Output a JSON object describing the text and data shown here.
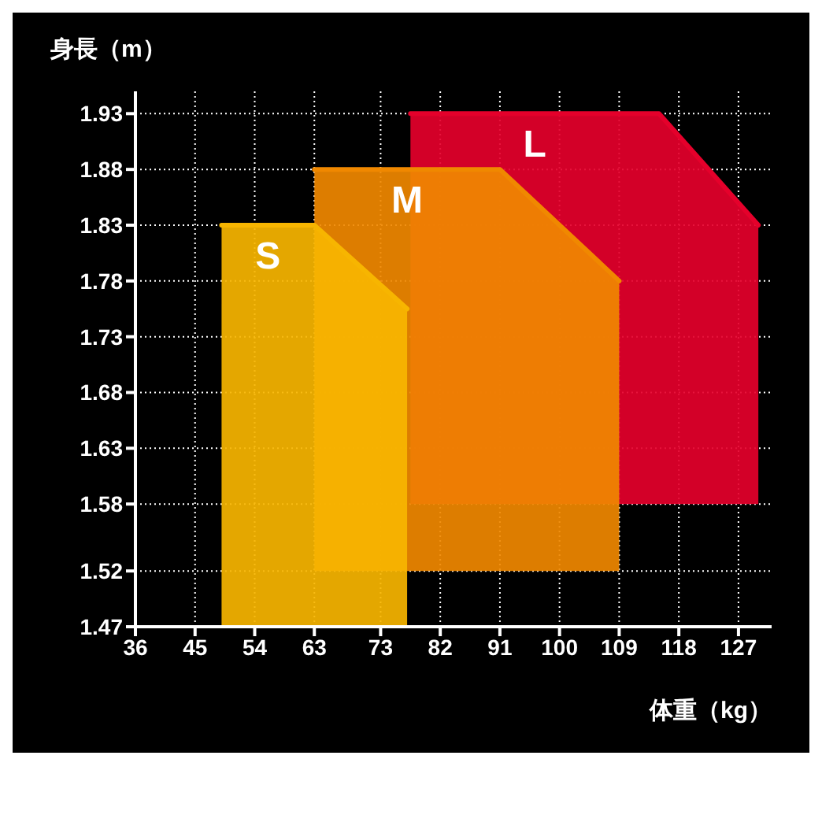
{
  "chart_data": {
    "type": "line",
    "xlabel": "体重（kg）",
    "ylabel": "身長（m）",
    "xlim": [
      36,
      132
    ],
    "xticks": [
      36,
      45,
      54,
      63,
      73,
      82,
      91,
      100,
      109,
      118,
      127
    ],
    "ylim": [
      1.47,
      1.95
    ],
    "yticks": [
      1.47,
      1.52,
      1.58,
      1.63,
      1.68,
      1.73,
      1.78,
      1.83,
      1.88,
      1.93
    ],
    "grid": true,
    "marker": "none",
    "series": [
      {
        "name": "L",
        "color": "#e5002b",
        "x": [
          77.5,
          115,
          130
        ],
        "values": [
          1.93,
          1.93,
          1.83
        ],
        "lower": [
          1.58,
          1.58,
          1.58
        ],
        "upper": [
          1.93,
          1.93,
          1.83
        ]
      },
      {
        "name": "M",
        "color": "#f08800",
        "x": [
          63,
          91,
          109
        ],
        "values": [
          1.88,
          1.88,
          1.78
        ],
        "lower": [
          1.52,
          1.52,
          1.52
        ],
        "upper": [
          1.88,
          1.88,
          1.78
        ]
      },
      {
        "name": "S",
        "color": "#f7b500",
        "x": [
          49,
          63,
          77
        ],
        "values": [
          1.83,
          1.83,
          1.755
        ],
        "lower": [
          1.47,
          1.47,
          1.47
        ],
        "upper": [
          1.83,
          1.83,
          1.755
        ]
      }
    ]
  }
}
